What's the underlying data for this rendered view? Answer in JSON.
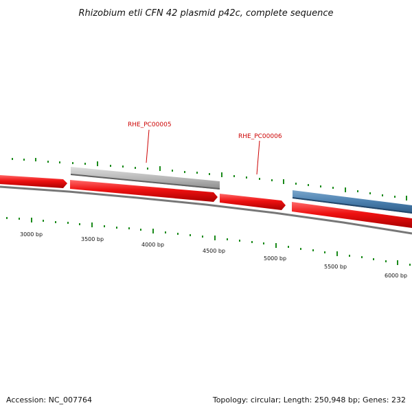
{
  "title": "Rhizobium etli CFN 42 plasmid p42c, complete sequence",
  "gene_labels": [
    {
      "text": "RHE_PC00005"
    },
    {
      "text": "RHE_PC00006"
    }
  ],
  "bp_labels": [
    "3000 bp",
    "3500 bp",
    "4000 bp",
    "4500 bp",
    "5000 bp",
    "5500 bp",
    "6000 bp"
  ],
  "footer": {
    "accession": "Accession: NC_007764",
    "summary": "Topology: circular; Length: 250,948 bp; Genes: 232"
  },
  "colors": {
    "cds_red": "#ee1111",
    "gene_gray": "#b4b4b4",
    "gene_blue": "#4a7fae",
    "backbone": "#777777",
    "tick_green": "#1a8a1a",
    "label_red": "#cc0000"
  }
}
